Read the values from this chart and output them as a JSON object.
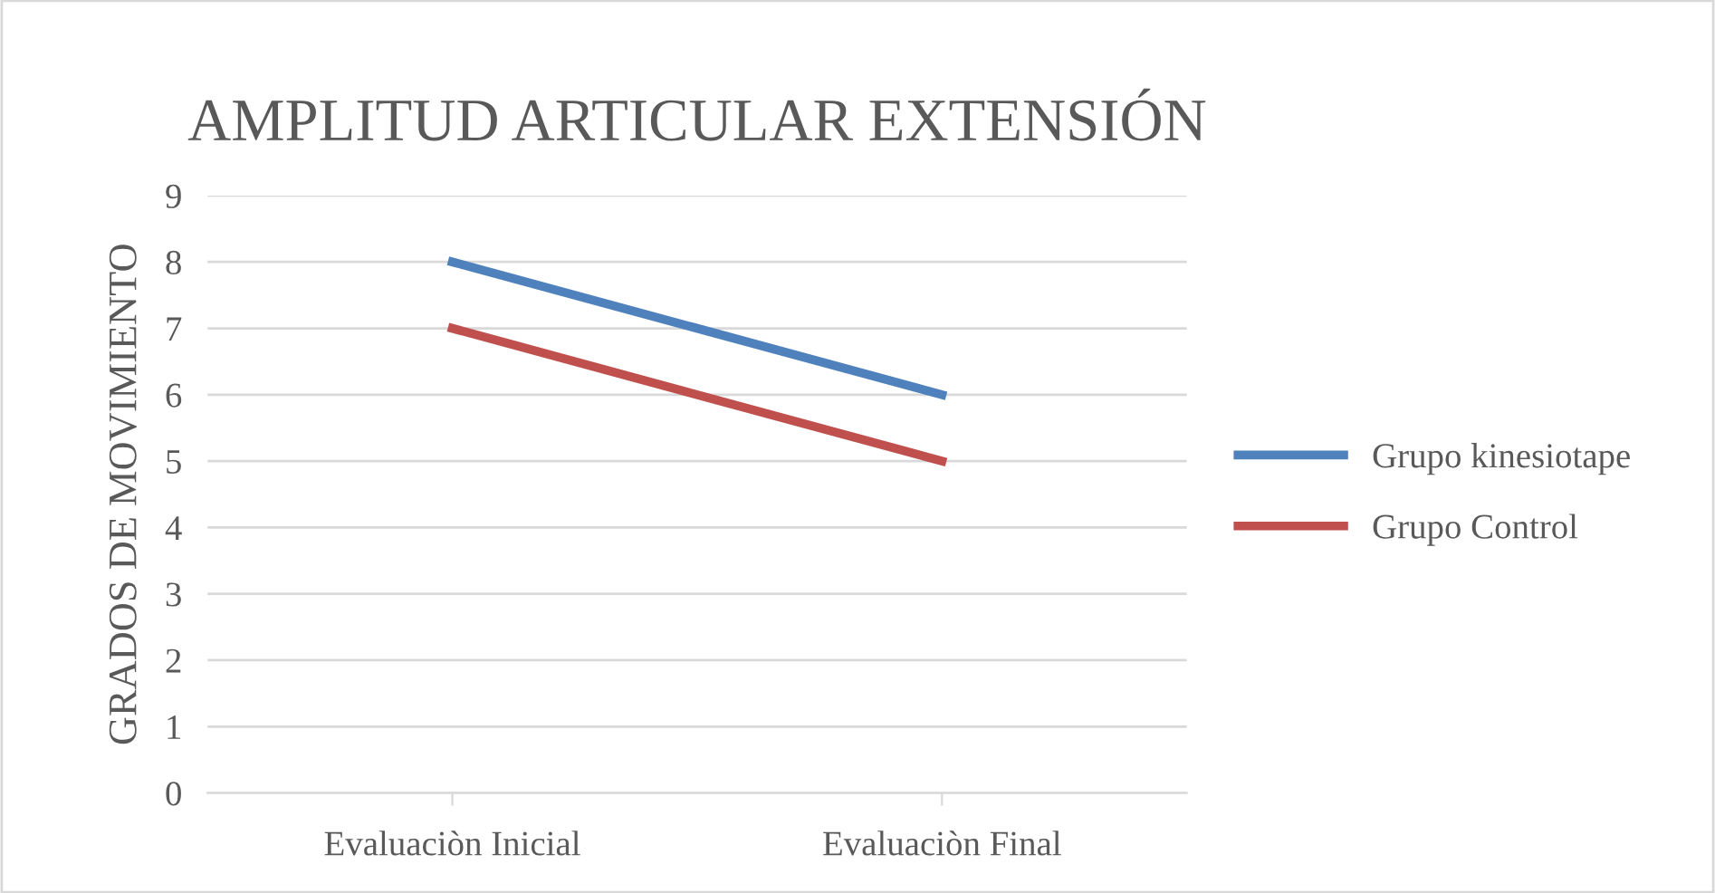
{
  "chart_data": {
    "type": "line",
    "title": "AMPLITUD ARTICULAR EXTENSIÓN",
    "ylabel": "GRADOS DE MOVIMIENTO",
    "categories": [
      "Evaluaciòn Inicial",
      "Evaluaciòn Final"
    ],
    "series": [
      {
        "name": "Grupo kinesiotape",
        "color": "#4f81bd",
        "values": [
          8,
          6
        ]
      },
      {
        "name": "Grupo Control",
        "color": "#c0504d",
        "values": [
          7,
          5
        ]
      }
    ],
    "ylim": [
      0,
      9
    ],
    "yticks": [
      0,
      1,
      2,
      3,
      4,
      5,
      6,
      7,
      8,
      9
    ],
    "grid": "y",
    "legend": "right",
    "marker": "none",
    "line_style": "solid"
  }
}
